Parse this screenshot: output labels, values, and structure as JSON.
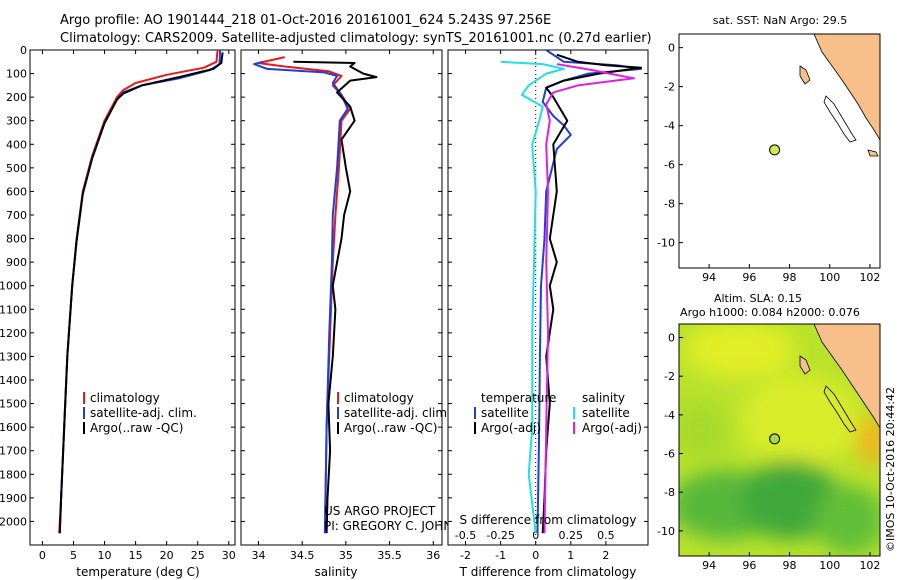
{
  "header": {
    "line1": "Argo profile: AO 1901444_218 01-Oct-2016 20161001_624 5.243S 97.256E",
    "line2": "Climatology: CARS2009. Satellite-adjusted climatology: synTS_20161001.nc (0.27d earlier)"
  },
  "colors": {
    "climatology": "#e41a1c",
    "satellite": "#1f3fd6",
    "argo": "#000000",
    "sal_satellite": "#22e0e0",
    "sal_argo": "#e020e0",
    "land": "#f7c08a",
    "marker": "#d4e84a"
  },
  "chart_data": [
    {
      "type": "line",
      "name": "temperature-profile",
      "xlabel": "temperature (deg C)",
      "ylabel": "",
      "xlim": [
        -2,
        31
      ],
      "ylim": [
        2100,
        0
      ],
      "xticks": [
        "0",
        "5",
        "10",
        "15",
        "20",
        "25",
        "30"
      ],
      "xtick_values": [
        0,
        5,
        10,
        15,
        20,
        25,
        30
      ],
      "yticks": [
        "0",
        "100",
        "200",
        "300",
        "400",
        "500",
        "600",
        "700",
        "800",
        "900",
        "1000",
        "1100",
        "1200",
        "1300",
        "1400",
        "1500",
        "1600",
        "1700",
        "1800",
        "1900",
        "2000"
      ],
      "ytick_values": [
        0,
        100,
        200,
        300,
        400,
        500,
        600,
        700,
        800,
        900,
        1000,
        1100,
        1200,
        1300,
        1400,
        1500,
        1600,
        1700,
        1800,
        1900,
        2000
      ],
      "legend": [
        "climatology",
        "satellite-adj. clim.",
        "Argo(..raw -QC)"
      ],
      "series": [
        {
          "name": "climatology",
          "color_key": "climatology",
          "points": [
            [
              28.2,
              0
            ],
            [
              28.0,
              50
            ],
            [
              26.0,
              75
            ],
            [
              20.0,
              105
            ],
            [
              15.0,
              140
            ],
            [
              13.0,
              170
            ],
            [
              12.0,
              200
            ],
            [
              11.0,
              250
            ],
            [
              10.0,
              300
            ],
            [
              8.0,
              450
            ],
            [
              6.5,
              600
            ],
            [
              5.5,
              800
            ],
            [
              4.8,
              1000
            ],
            [
              4.0,
              1300
            ],
            [
              3.5,
              1600
            ],
            [
              3.0,
              1900
            ],
            [
              2.7,
              2050
            ]
          ]
        },
        {
          "name": "satellite-adj. clim.",
          "color_key": "satellite",
          "points": [
            [
              28.6,
              0
            ],
            [
              28.5,
              60
            ],
            [
              27.0,
              85
            ],
            [
              22.0,
              120
            ],
            [
              16.0,
              150
            ],
            [
              13.0,
              180
            ],
            [
              12.0,
              210
            ],
            [
              11.0,
              260
            ],
            [
              10.0,
              310
            ],
            [
              8.0,
              460
            ],
            [
              6.5,
              610
            ],
            [
              5.5,
              810
            ],
            [
              4.8,
              1000
            ],
            [
              4.0,
              1300
            ],
            [
              3.5,
              1600
            ],
            [
              3.0,
              1900
            ],
            [
              2.8,
              2050
            ]
          ]
        },
        {
          "name": "Argo(..raw -QC)",
          "color_key": "argo",
          "points": [
            [
              29.0,
              10
            ],
            [
              28.8,
              55
            ],
            [
              27.5,
              80
            ],
            [
              22.0,
              115
            ],
            [
              16.0,
              150
            ],
            [
              13.0,
              185
            ],
            [
              12.0,
              210
            ],
            [
              11.0,
              260
            ],
            [
              10.0,
              310
            ],
            [
              8.0,
              460
            ],
            [
              6.5,
              610
            ],
            [
              5.5,
              810
            ],
            [
              4.8,
              1000
            ],
            [
              4.0,
              1300
            ],
            [
              3.5,
              1600
            ],
            [
              3.0,
              1900
            ],
            [
              2.8,
              2050
            ]
          ]
        }
      ]
    },
    {
      "type": "line",
      "name": "salinity-profile",
      "xlabel": "salinity",
      "xlim": [
        33.8,
        36.1
      ],
      "ylim": [
        2100,
        0
      ],
      "xticks": [
        "34",
        "34.5",
        "35",
        "35.5",
        "36"
      ],
      "xtick_values": [
        34,
        34.5,
        35,
        35.5,
        36
      ],
      "legend": [
        "climatology",
        "satellite-adj. clim.",
        "Argo(..raw -QC)"
      ],
      "annotation": [
        "US ARGO PROJECT",
        "PI: GREGORY C. JOHNSON"
      ],
      "series": [
        {
          "name": "climatology",
          "color_key": "climatology",
          "points": [
            [
              34.3,
              30
            ],
            [
              34.0,
              55
            ],
            [
              34.3,
              70
            ],
            [
              34.8,
              90
            ],
            [
              34.95,
              110
            ],
            [
              34.85,
              150
            ],
            [
              34.95,
              190
            ],
            [
              35.05,
              250
            ],
            [
              34.95,
              300
            ],
            [
              34.92,
              500
            ],
            [
              34.88,
              700
            ],
            [
              34.85,
              900
            ],
            [
              34.82,
              1200
            ],
            [
              34.78,
              1600
            ],
            [
              34.76,
              2050
            ]
          ]
        },
        {
          "name": "satellite-adj. clim.",
          "color_key": "satellite",
          "points": [
            [
              34.05,
              50
            ],
            [
              33.95,
              60
            ],
            [
              34.1,
              80
            ],
            [
              34.75,
              95
            ],
            [
              34.9,
              110
            ],
            [
              34.85,
              140
            ],
            [
              34.95,
              190
            ],
            [
              35.02,
              250
            ],
            [
              34.93,
              300
            ],
            [
              34.9,
              500
            ],
            [
              34.85,
              700
            ],
            [
              34.84,
              900
            ],
            [
              34.81,
              1200
            ],
            [
              34.78,
              1600
            ],
            [
              34.76,
              2050
            ]
          ]
        },
        {
          "name": "Argo(..raw -QC)",
          "color_key": "argo",
          "points": [
            [
              34.4,
              50
            ],
            [
              35.1,
              55
            ],
            [
              35.05,
              70
            ],
            [
              35.2,
              100
            ],
            [
              35.35,
              115
            ],
            [
              35.05,
              130
            ],
            [
              34.9,
              180
            ],
            [
              35.05,
              240
            ],
            [
              35.1,
              300
            ],
            [
              34.95,
              380
            ],
            [
              35.0,
              500
            ],
            [
              35.05,
              600
            ],
            [
              34.98,
              700
            ],
            [
              34.95,
              800
            ],
            [
              34.9,
              900
            ],
            [
              34.85,
              1000
            ],
            [
              34.88,
              1100
            ],
            [
              34.85,
              1300
            ],
            [
              34.8,
              1500
            ],
            [
              34.82,
              1700
            ],
            [
              34.79,
              1900
            ],
            [
              34.78,
              2050
            ]
          ]
        }
      ]
    },
    {
      "type": "line",
      "name": "difference-profile",
      "xlabel": "T difference from climatology",
      "top_label": "S difference from climatology",
      "xlim": [
        -2.5,
        3.2
      ],
      "ylim": [
        2100,
        0
      ],
      "xticks": [
        "-2",
        "-1",
        "0",
        "1",
        "2"
      ],
      "xtick_values": [
        -2,
        -1,
        0,
        1,
        2
      ],
      "sticks": [
        "-0.5",
        "-0.25",
        "0",
        "0.25",
        "0.5"
      ],
      "stick_values": [
        -2,
        -1,
        0,
        1,
        2
      ],
      "legend_left_title": "temperature",
      "legend_right_title": "salinity",
      "legend_left": [
        "satellite",
        "Argo(-adj)"
      ],
      "legend_right": [
        "satellite",
        "Argo(-adj)"
      ],
      "series": [
        {
          "name": "T satellite",
          "color_key": "satellite",
          "points": [
            [
              0.3,
              0
            ],
            [
              0.8,
              50
            ],
            [
              2.3,
              65
            ],
            [
              3.0,
              80
            ],
            [
              1.5,
              100
            ],
            [
              0.8,
              130
            ],
            [
              0.3,
              160
            ],
            [
              0.2,
              220
            ],
            [
              0.5,
              280
            ],
            [
              0.8,
              320
            ],
            [
              1.0,
              360
            ],
            [
              0.6,
              420
            ],
            [
              0.3,
              600
            ],
            [
              0.25,
              800
            ],
            [
              0.15,
              1000
            ],
            [
              0.12,
              1300
            ],
            [
              0.1,
              1600
            ],
            [
              0.05,
              2050
            ]
          ]
        },
        {
          "name": "T Argo(-adj)",
          "color_key": "argo",
          "points": [
            [
              0.6,
              20
            ],
            [
              1.2,
              50
            ],
            [
              2.0,
              65
            ],
            [
              3.0,
              75
            ],
            [
              1.8,
              100
            ],
            [
              0.8,
              130
            ],
            [
              0.3,
              160
            ],
            [
              0.5,
              200
            ],
            [
              0.9,
              300
            ],
            [
              0.5,
              400
            ],
            [
              0.6,
              600
            ],
            [
              0.4,
              800
            ],
            [
              0.6,
              900
            ],
            [
              0.4,
              1000
            ],
            [
              0.5,
              1100
            ],
            [
              0.3,
              1300
            ],
            [
              0.4,
              1500
            ],
            [
              0.3,
              1700
            ],
            [
              0.25,
              1900
            ],
            [
              0.2,
              2050
            ]
          ]
        },
        {
          "name": "S satellite",
          "color_key": "sal_satellite",
          "points": [
            [
              -1.0,
              50
            ],
            [
              0.2,
              60
            ],
            [
              0.8,
              80
            ],
            [
              0.3,
              100
            ],
            [
              -0.2,
              150
            ],
            [
              -0.4,
              190
            ],
            [
              0.2,
              240
            ],
            [
              0.1,
              300
            ],
            [
              -0.1,
              400
            ],
            [
              0.0,
              600
            ],
            [
              -0.05,
              900
            ],
            [
              -0.1,
              1200
            ],
            [
              -0.1,
              1600
            ],
            [
              -0.2,
              1800
            ],
            [
              0.0,
              2050
            ]
          ]
        },
        {
          "name": "S Argo(-adj)",
          "color_key": "sal_argo",
          "points": [
            [
              0.6,
              60
            ],
            [
              1.6,
              85
            ],
            [
              2.1,
              100
            ],
            [
              2.8,
              120
            ],
            [
              1.2,
              150
            ],
            [
              0.5,
              180
            ],
            [
              0.3,
              230
            ],
            [
              0.4,
              300
            ],
            [
              0.3,
              400
            ],
            [
              0.35,
              600
            ],
            [
              0.3,
              900
            ],
            [
              0.35,
              1200
            ],
            [
              0.3,
              1600
            ],
            [
              0.25,
              2050
            ]
          ]
        }
      ]
    },
    {
      "type": "scatter",
      "name": "sst-map",
      "title": "sat. SST: NaN Argo: 29.5",
      "xlim": [
        92.5,
        102.5
      ],
      "ylim": [
        -11.3,
        0.7
      ],
      "xticks": [
        "94",
        "96",
        "98",
        "100",
        "102"
      ],
      "xtick_values": [
        94,
        96,
        98,
        100,
        102
      ],
      "yticks": [
        "0",
        "-2",
        "-4",
        "-6",
        "-8",
        "-10"
      ],
      "ytick_values": [
        0,
        -2,
        -4,
        -6,
        -8,
        -10
      ],
      "points": [
        {
          "lon": 97.256,
          "lat": -5.243,
          "label": "Argo float"
        }
      ]
    },
    {
      "type": "heatmap",
      "name": "sla-map",
      "title_line1": "Altim. SLA: 0.15",
      "title_line2": "Argo h1000: 0.084 h2000: 0.076",
      "xlim": [
        92.5,
        102.5
      ],
      "ylim": [
        -11.3,
        0.7
      ],
      "xticks": [
        "94",
        "96",
        "98",
        "100",
        "102"
      ],
      "xtick_values": [
        94,
        96,
        98,
        100,
        102
      ],
      "yticks": [
        "0",
        "-2",
        "-4",
        "-6",
        "-8",
        "-10"
      ],
      "ytick_values": [
        0,
        -2,
        -4,
        -6,
        -8,
        -10
      ],
      "points": [
        {
          "lon": 97.256,
          "lat": -5.243,
          "label": "Argo float"
        }
      ]
    }
  ],
  "credit": "©IMOS 10-Oct-2016 20:44:42"
}
